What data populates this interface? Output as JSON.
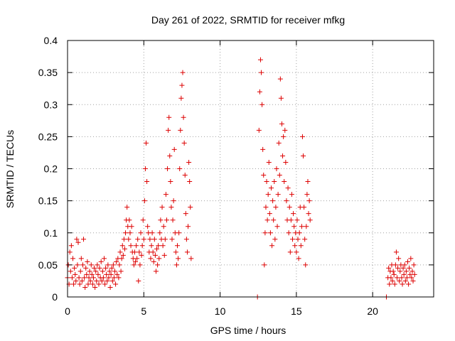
{
  "chart_data": {
    "type": "scatter",
    "title": "Day 261 of 2022, SRMTID for receiver mfkg",
    "xlabel": "GPS time / hours",
    "ylabel": "SRMTID / TECUs",
    "xlim": [
      0,
      24
    ],
    "ylim": [
      0,
      0.4
    ],
    "xticks": [
      0,
      5,
      10,
      15,
      20
    ],
    "yticks": [
      0,
      0.05,
      0.1,
      0.15,
      0.2,
      0.25,
      0.3,
      0.35,
      0.4
    ],
    "xtick_labels": [
      "0",
      "5",
      "10",
      "15",
      "20"
    ],
    "ytick_labels": [
      "0",
      "0.05",
      "0.1",
      "0.15",
      "0.2",
      "0.25",
      "0.3",
      "0.35",
      "0.4"
    ],
    "grid": true,
    "marker": "+",
    "color": "#dd0000",
    "series": [
      {
        "name": "SRMTID",
        "points": [
          [
            0.0,
            0.03
          ],
          [
            0.05,
            0.05
          ],
          [
            0.1,
            0.02
          ],
          [
            0.15,
            0.07
          ],
          [
            0.2,
            0.04
          ],
          [
            0.25,
            0.08
          ],
          [
            0.3,
            0.03
          ],
          [
            0.35,
            0.06
          ],
          [
            0.4,
            0.02
          ],
          [
            0.45,
            0.045
          ],
          [
            0.5,
            0.035
          ],
          [
            0.55,
            0.025
          ],
          [
            0.6,
            0.09
          ],
          [
            0.65,
            0.05
          ],
          [
            0.7,
            0.085
          ],
          [
            0.75,
            0.03
          ],
          [
            0.8,
            0.02
          ],
          [
            0.85,
            0.04
          ],
          [
            0.9,
            0.06
          ],
          [
            0.95,
            0.025
          ],
          [
            1.0,
            0.05
          ],
          [
            1.05,
            0.09
          ],
          [
            1.1,
            0.03
          ],
          [
            1.15,
            0.015
          ],
          [
            1.2,
            0.045
          ],
          [
            1.25,
            0.035
          ],
          [
            1.3,
            0.055
          ],
          [
            1.35,
            0.02
          ],
          [
            1.4,
            0.03
          ],
          [
            1.45,
            0.04
          ],
          [
            1.5,
            0.025
          ],
          [
            1.55,
            0.05
          ],
          [
            1.6,
            0.035
          ],
          [
            1.65,
            0.02
          ],
          [
            1.7,
            0.03
          ],
          [
            1.75,
            0.045
          ],
          [
            1.8,
            0.015
          ],
          [
            1.85,
            0.04
          ],
          [
            1.9,
            0.025
          ],
          [
            1.95,
            0.05
          ],
          [
            2.0,
            0.035
          ],
          [
            2.05,
            0.02
          ],
          [
            2.1,
            0.045
          ],
          [
            2.15,
            0.03
          ],
          [
            2.2,
            0.055
          ],
          [
            2.25,
            0.025
          ],
          [
            2.3,
            0.04
          ],
          [
            2.35,
            0.03
          ],
          [
            2.4,
            0.06
          ],
          [
            2.45,
            0.02
          ],
          [
            2.5,
            0.045
          ],
          [
            2.55,
            0.035
          ],
          [
            2.6,
            0.025
          ],
          [
            2.65,
            0.05
          ],
          [
            2.7,
            0.03
          ],
          [
            2.75,
            0.04
          ],
          [
            2.8,
            0.015
          ],
          [
            2.85,
            0.035
          ],
          [
            2.9,
            0.045
          ],
          [
            2.95,
            0.025
          ],
          [
            3.0,
            0.05
          ],
          [
            3.05,
            0.03
          ],
          [
            3.1,
            0.04
          ],
          [
            3.15,
            0.02
          ],
          [
            3.2,
            0.055
          ],
          [
            3.25,
            0.035
          ],
          [
            3.3,
            0.06
          ],
          [
            3.35,
            0.03
          ],
          [
            3.4,
            0.05
          ],
          [
            3.45,
            0.07
          ],
          [
            3.5,
            0.04
          ],
          [
            3.55,
            0.06
          ],
          [
            3.6,
            0.08
          ],
          [
            3.65,
            0.065
          ],
          [
            3.7,
            0.09
          ],
          [
            3.75,
            0.075
          ],
          [
            3.8,
            0.1
          ],
          [
            3.85,
            0.12
          ],
          [
            3.9,
            0.14
          ],
          [
            3.95,
            0.11
          ],
          [
            4.0,
            0.09
          ],
          [
            4.05,
            0.12
          ],
          [
            4.1,
            0.1
          ],
          [
            4.15,
            0.08
          ],
          [
            4.2,
            0.11
          ],
          [
            4.25,
            0.07
          ],
          [
            4.3,
            0.06
          ],
          [
            4.35,
            0.05
          ],
          [
            4.4,
            0.07
          ],
          [
            4.45,
            0.055
          ],
          [
            4.5,
            0.08
          ],
          [
            4.55,
            0.06
          ],
          [
            4.6,
            0.09
          ],
          [
            4.65,
            0.025
          ],
          [
            4.7,
            0.07
          ],
          [
            4.75,
            0.05
          ],
          [
            4.8,
            0.1
          ],
          [
            4.85,
            0.065
          ],
          [
            4.9,
            0.08
          ],
          [
            4.95,
            0.12
          ],
          [
            5.0,
            0.09
          ],
          [
            5.05,
            0.15
          ],
          [
            5.1,
            0.2
          ],
          [
            5.15,
            0.24
          ],
          [
            5.2,
            0.18
          ],
          [
            5.25,
            0.11
          ],
          [
            5.3,
            0.1
          ],
          [
            5.35,
            0.07
          ],
          [
            5.4,
            0.09
          ],
          [
            5.45,
            0.06
          ],
          [
            5.5,
            0.08
          ],
          [
            5.55,
            0.1
          ],
          [
            5.6,
            0.07
          ],
          [
            5.65,
            0.055
          ],
          [
            5.7,
            0.09
          ],
          [
            5.75,
            0.065
          ],
          [
            5.8,
            0.04
          ],
          [
            5.85,
            0.075
          ],
          [
            5.9,
            0.05
          ],
          [
            5.95,
            0.08
          ],
          [
            6.0,
            0.06
          ],
          [
            6.05,
            0.1
          ],
          [
            6.1,
            0.12
          ],
          [
            6.15,
            0.09
          ],
          [
            6.2,
            0.14
          ],
          [
            6.25,
            0.08
          ],
          [
            6.3,
            0.11
          ],
          [
            6.35,
            0.065
          ],
          [
            6.4,
            0.09
          ],
          [
            6.45,
            0.16
          ],
          [
            6.5,
            0.12
          ],
          [
            6.55,
            0.2
          ],
          [
            6.6,
            0.26
          ],
          [
            6.65,
            0.28
          ],
          [
            6.7,
            0.22
          ],
          [
            6.75,
            0.18
          ],
          [
            6.8,
            0.14
          ],
          [
            6.85,
            0.09
          ],
          [
            6.9,
            0.12
          ],
          [
            6.95,
            0.15
          ],
          [
            7.0,
            0.23
          ],
          [
            7.05,
            0.1
          ],
          [
            7.1,
            0.07
          ],
          [
            7.15,
            0.05
          ],
          [
            7.2,
            0.08
          ],
          [
            7.25,
            0.06
          ],
          [
            7.3,
            0.1
          ],
          [
            7.35,
            0.2
          ],
          [
            7.4,
            0.26
          ],
          [
            7.45,
            0.31
          ],
          [
            7.5,
            0.33
          ],
          [
            7.55,
            0.35
          ],
          [
            7.6,
            0.28
          ],
          [
            7.65,
            0.24
          ],
          [
            7.7,
            0.19
          ],
          [
            7.75,
            0.13
          ],
          [
            7.8,
            0.09
          ],
          [
            7.85,
            0.07
          ],
          [
            7.9,
            0.11
          ],
          [
            7.95,
            0.21
          ],
          [
            8.0,
            0.18
          ],
          [
            8.05,
            0.14
          ],
          [
            8.1,
            0.06
          ],
          [
            12.45,
            0.0
          ],
          [
            12.55,
            0.26
          ],
          [
            12.6,
            0.32
          ],
          [
            12.65,
            0.37
          ],
          [
            12.7,
            0.35
          ],
          [
            12.75,
            0.3
          ],
          [
            12.8,
            0.23
          ],
          [
            12.85,
            0.19
          ],
          [
            12.9,
            0.05
          ],
          [
            12.95,
            0.1
          ],
          [
            13.0,
            0.14
          ],
          [
            13.05,
            0.18
          ],
          [
            13.1,
            0.12
          ],
          [
            13.15,
            0.16
          ],
          [
            13.2,
            0.21
          ],
          [
            13.25,
            0.13
          ],
          [
            13.3,
            0.1
          ],
          [
            13.35,
            0.17
          ],
          [
            13.4,
            0.08
          ],
          [
            13.45,
            0.15
          ],
          [
            13.5,
            0.12
          ],
          [
            13.55,
            0.18
          ],
          [
            13.6,
            0.09
          ],
          [
            13.65,
            0.14
          ],
          [
            13.7,
            0.2
          ],
          [
            13.75,
            0.11
          ],
          [
            13.8,
            0.16
          ],
          [
            13.85,
            0.24
          ],
          [
            13.9,
            0.19
          ],
          [
            13.95,
            0.34
          ],
          [
            14.0,
            0.31
          ],
          [
            14.05,
            0.27
          ],
          [
            14.1,
            0.22
          ],
          [
            14.15,
            0.25
          ],
          [
            14.2,
            0.18
          ],
          [
            14.25,
            0.26
          ],
          [
            14.3,
            0.21
          ],
          [
            14.35,
            0.15
          ],
          [
            14.4,
            0.12
          ],
          [
            14.45,
            0.17
          ],
          [
            14.5,
            0.1
          ],
          [
            14.55,
            0.14
          ],
          [
            14.6,
            0.07
          ],
          [
            14.65,
            0.12
          ],
          [
            14.7,
            0.16
          ],
          [
            14.75,
            0.09
          ],
          [
            14.8,
            0.13
          ],
          [
            14.85,
            0.11
          ],
          [
            14.9,
            0.08
          ],
          [
            14.95,
            0.1
          ],
          [
            15.0,
            0.07
          ],
          [
            15.05,
            0.12
          ],
          [
            15.1,
            0.09
          ],
          [
            15.15,
            0.06
          ],
          [
            15.2,
            0.1
          ],
          [
            15.25,
            0.14
          ],
          [
            15.3,
            0.08
          ],
          [
            15.35,
            0.11
          ],
          [
            15.4,
            0.25
          ],
          [
            15.45,
            0.22
          ],
          [
            15.5,
            0.14
          ],
          [
            15.55,
            0.09
          ],
          [
            15.6,
            0.05
          ],
          [
            15.65,
            0.11
          ],
          [
            15.7,
            0.16
          ],
          [
            15.75,
            0.18
          ],
          [
            15.8,
            0.13
          ],
          [
            15.85,
            0.15
          ],
          [
            15.9,
            0.12
          ],
          [
            20.9,
            0.0
          ],
          [
            21.0,
            0.03
          ],
          [
            21.05,
            0.045
          ],
          [
            21.1,
            0.02
          ],
          [
            21.15,
            0.04
          ],
          [
            21.2,
            0.03
          ],
          [
            21.25,
            0.05
          ],
          [
            21.3,
            0.025
          ],
          [
            21.35,
            0.04
          ],
          [
            21.4,
            0.035
          ],
          [
            21.45,
            0.02
          ],
          [
            21.5,
            0.05
          ],
          [
            21.55,
            0.07
          ],
          [
            21.6,
            0.03
          ],
          [
            21.65,
            0.045
          ],
          [
            21.7,
            0.06
          ],
          [
            21.75,
            0.025
          ],
          [
            21.8,
            0.04
          ],
          [
            21.85,
            0.05
          ],
          [
            21.9,
            0.03
          ],
          [
            21.95,
            0.02
          ],
          [
            22.0,
            0.045
          ],
          [
            22.05,
            0.035
          ],
          [
            22.1,
            0.05
          ],
          [
            22.15,
            0.025
          ],
          [
            22.2,
            0.04
          ],
          [
            22.25,
            0.03
          ],
          [
            22.3,
            0.055
          ],
          [
            22.35,
            0.02
          ],
          [
            22.4,
            0.045
          ],
          [
            22.45,
            0.035
          ],
          [
            22.5,
            0.06
          ],
          [
            22.55,
            0.03
          ],
          [
            22.6,
            0.04
          ],
          [
            22.65,
            0.025
          ],
          [
            22.7,
            0.05
          ],
          [
            22.75,
            0.035
          ]
        ]
      }
    ]
  }
}
